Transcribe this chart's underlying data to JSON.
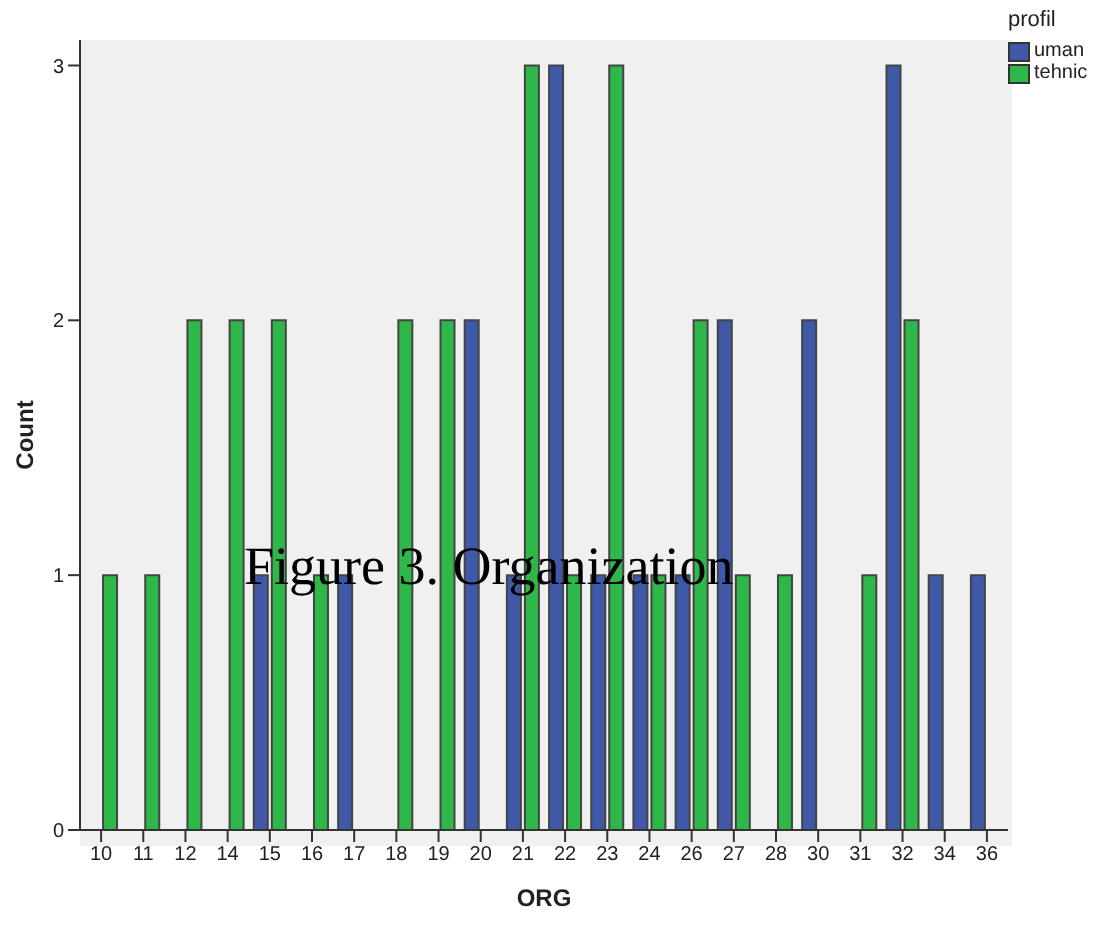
{
  "chart_data": {
    "type": "bar",
    "xlabel": "ORG",
    "ylabel": "Count",
    "legend_title": "profil",
    "legend": "top right",
    "grid": false,
    "categories": [
      "10",
      "11",
      "12",
      "14",
      "15",
      "16",
      "17",
      "18",
      "19",
      "20",
      "21",
      "22",
      "23",
      "24",
      "26",
      "27",
      "28",
      "30",
      "31",
      "32",
      "34",
      "36"
    ],
    "series": [
      {
        "name": "uman",
        "color": "#3f58a8",
        "values": [
          0,
          0,
          0,
          0,
          1,
          0,
          1,
          0,
          0,
          2,
          1,
          3,
          1,
          1,
          1,
          2,
          0,
          2,
          0,
          3,
          1,
          1
        ]
      },
      {
        "name": "tehnic",
        "color": "#2eb84a",
        "values": [
          1,
          1,
          2,
          2,
          2,
          1,
          0,
          2,
          2,
          0,
          3,
          1,
          3,
          1,
          2,
          1,
          1,
          0,
          1,
          2,
          0,
          0
        ]
      }
    ],
    "ylim": [
      0,
      3.1
    ],
    "yticks": [
      0,
      1,
      2,
      3
    ],
    "annotations": [
      "Figure 3. Organization"
    ]
  }
}
